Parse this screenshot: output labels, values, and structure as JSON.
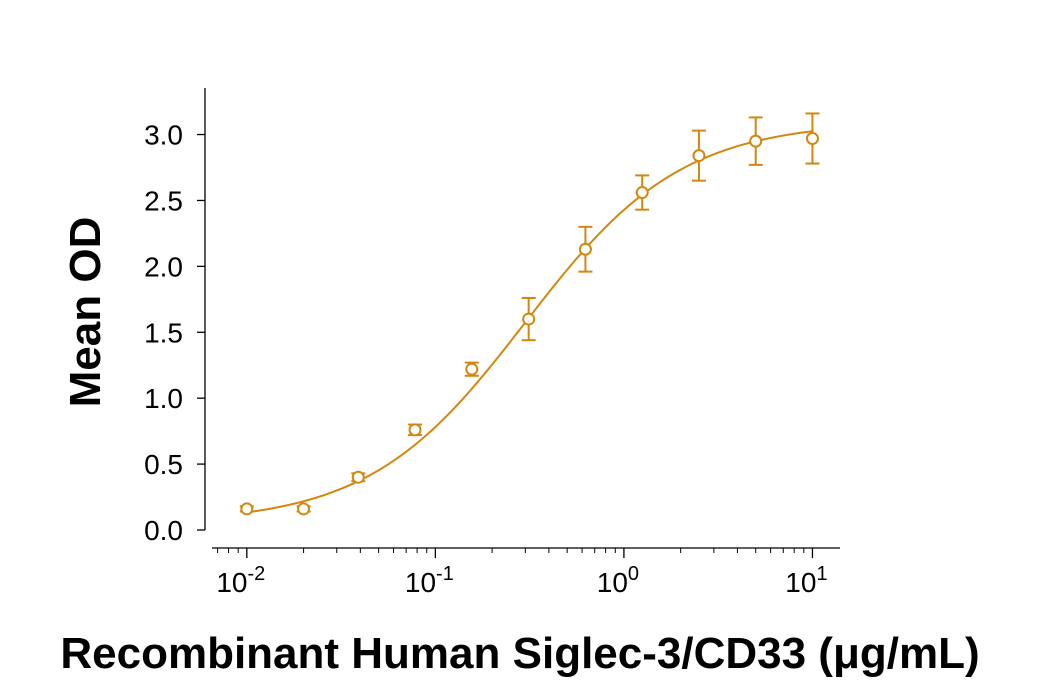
{
  "chart_data": {
    "type": "scatter",
    "title": "",
    "xlabel": "Recombinant Human Siglec-3/CD33 (μg/mL)",
    "ylabel": "Mean OD",
    "x_scale": "log",
    "xlim": [
      0.006,
      14
    ],
    "ylim": [
      0.0,
      3.3
    ],
    "x_ticks": [
      {
        "base": "10",
        "exp": "-2",
        "value": 0.01
      },
      {
        "base": "10",
        "exp": "-1",
        "value": 0.1
      },
      {
        "base": "10",
        "exp": "0",
        "value": 1
      },
      {
        "base": "10",
        "exp": "1",
        "value": 10
      }
    ],
    "y_ticks": [
      "0.0",
      "0.5",
      "1.0",
      "1.5",
      "2.0",
      "2.5",
      "3.0"
    ],
    "color": "#d4870f",
    "grid": false,
    "legend": "none",
    "series": [
      {
        "x": [
          0.01,
          0.02,
          0.039,
          0.078,
          0.156,
          0.3125,
          0.625,
          1.25,
          2.5,
          5,
          10
        ],
        "y": [
          0.16,
          0.16,
          0.4,
          0.76,
          1.22,
          1.6,
          2.13,
          2.56,
          2.84,
          2.95,
          2.97
        ],
        "error": [
          0.02,
          0.02,
          0.03,
          0.04,
          0.05,
          0.16,
          0.17,
          0.13,
          0.19,
          0.18,
          0.19
        ]
      }
    ],
    "fit": {
      "type": "4PL",
      "bottom": 0.05,
      "top": 3.1,
      "ec50": 0.3,
      "hill": 1.05
    }
  }
}
